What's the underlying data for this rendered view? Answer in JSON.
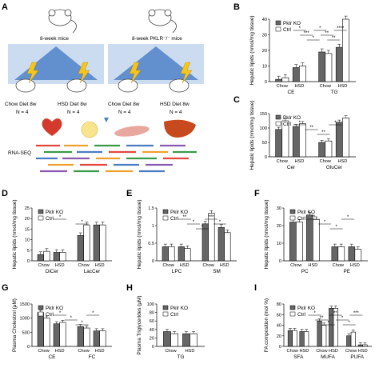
{
  "figure": {
    "panel_a": {
      "label": "A",
      "mouse_left": "8-week mice",
      "mouse_right": "8-week PKLR⁻/⁻ mice",
      "diets": [
        "Chow Diet 8w",
        "HSD Diet 8w",
        "Chow Diet 8w",
        "HSD Diet 8w"
      ],
      "n": [
        "N = 4",
        "N = 4",
        "N = 4",
        "N = 4"
      ],
      "rnaseq": "RNA-SEQ"
    }
  },
  "chart_data": [
    {
      "panel": "B",
      "type": "bar",
      "ylabel": "Hepatic lipids (nmol/mg tissue)",
      "ylim": [
        0,
        40
      ],
      "yticks": [
        0,
        10,
        20,
        30,
        40
      ],
      "groups": [
        "CE",
        "TG"
      ],
      "subgroups": [
        "Chow",
        "HSD",
        "Chow",
        "HSD"
      ],
      "series": [
        {
          "name": "Pklr KO",
          "values": [
            1.5,
            9,
            19,
            22
          ]
        },
        {
          "name": "Ctrl",
          "values": [
            2.5,
            10,
            18,
            40
          ]
        }
      ],
      "sig": [
        "*",
        "***",
        "*",
        "*",
        "**",
        "**",
        "****"
      ]
    },
    {
      "panel": "C",
      "type": "bar",
      "ylabel": "Hepatic lipids (nmol/mg tissue)",
      "ylim": [
        0,
        150
      ],
      "yticks": [
        0,
        50,
        100,
        150
      ],
      "groups": [
        "Cer",
        "GluCer"
      ],
      "subgroups": [
        "Chow",
        "HSD",
        "Chow",
        "HSD"
      ],
      "series": [
        {
          "name": "Pklr KO",
          "values": [
            95,
            105,
            50,
            120
          ]
        },
        {
          "name": "Ctrl",
          "values": [
            125,
            115,
            55,
            135
          ]
        }
      ],
      "sig": [
        "*",
        "**",
        "**",
        "*"
      ]
    },
    {
      "panel": "D",
      "type": "bar",
      "ylabel": "Hepatic lipids (nmol/mg tissue)",
      "ylim": [
        0,
        25
      ],
      "yticks": [
        0,
        5,
        10,
        15,
        20,
        25
      ],
      "groups": [
        "DiCer",
        "LacCer"
      ],
      "subgroups": [
        "Chow",
        "HSD",
        "Chow",
        "HSD"
      ],
      "series": [
        {
          "name": "Pklr KO",
          "values": [
            3,
            4,
            12,
            17
          ]
        },
        {
          "name": "Ctrl",
          "values": [
            4.5,
            4,
            17,
            17
          ]
        }
      ],
      "sig": [
        "*",
        "*"
      ]
    },
    {
      "panel": "E",
      "type": "bar",
      "ylabel": "Hepatic lipids (nmol/mg tissue)",
      "ylim": [
        0,
        1.5
      ],
      "yticks": [
        0.0,
        0.5,
        1.0,
        1.5
      ],
      "groups": [
        "LPC",
        "SM"
      ],
      "subgroups": [
        "Chow",
        "HSD",
        "Chow",
        "HSD"
      ],
      "series": [
        {
          "name": "Pklr KO",
          "values": [
            0.4,
            0.4,
            1.05,
            0.95
          ]
        },
        {
          "name": "Ctrl",
          "values": [
            0.4,
            0.35,
            1.35,
            0.8
          ]
        }
      ],
      "sig": [
        "**",
        "*",
        "*",
        "***",
        "*"
      ]
    },
    {
      "panel": "F",
      "type": "bar",
      "ylabel": "Hepatic lipids (nmol/mg tissue)",
      "ylim": [
        0,
        30
      ],
      "yticks": [
        0,
        10,
        20,
        30
      ],
      "groups": [
        "PC",
        "PE"
      ],
      "subgroups": [
        "Chow",
        "HSD",
        "Chow",
        "HSD"
      ],
      "series": [
        {
          "name": "Pklr KO",
          "values": [
            22,
            26,
            8,
            8
          ]
        },
        {
          "name": "Ctrl",
          "values": [
            22,
            23.5,
            8,
            6.5
          ]
        }
      ],
      "sig": [
        "**",
        "*",
        "*",
        "*"
      ]
    },
    {
      "panel": "G",
      "type": "bar",
      "ylabel": "Plasma Cholestrol (μM)",
      "ylim": [
        0,
        1500
      ],
      "yticks": [
        0,
        500,
        1000,
        1500
      ],
      "groups": [
        "CE",
        "FC"
      ],
      "subgroups": [
        "Chow",
        "HSD",
        "Chow",
        "HSD"
      ],
      "series": [
        {
          "name": "Pklr KO",
          "values": [
            1200,
            800,
            700,
            550
          ]
        },
        {
          "name": "Ctrl",
          "values": [
            1000,
            850,
            650,
            550
          ]
        }
      ],
      "sig": [
        "*",
        "*",
        "*",
        "*"
      ]
    },
    {
      "panel": "H",
      "type": "bar",
      "ylabel": "Plasma Triglycerides (μM)",
      "ylim": [
        0,
        100
      ],
      "yticks": [
        0,
        20,
        40,
        60,
        80,
        100
      ],
      "groups": [
        "TG"
      ],
      "subgroups": [
        "Chow",
        "HSD"
      ],
      "series": [
        {
          "name": "Pklr KO",
          "values": [
            35,
            30
          ]
        },
        {
          "name": "Ctrl",
          "values": [
            30,
            30
          ]
        }
      ],
      "sig": []
    },
    {
      "panel": "I",
      "type": "bar",
      "ylabel": "FA composition (mol %)",
      "ylim": [
        0,
        80
      ],
      "yticks": [
        0,
        20,
        40,
        60,
        80
      ],
      "groups": [
        "SFA",
        "MUFA",
        "PUFA"
      ],
      "subgroups": [
        "Chow",
        "HSD",
        "Chow",
        "HSD",
        "Chow",
        "HSD"
      ],
      "series": [
        {
          "name": "Pklr KO",
          "values": [
            30,
            28,
            48,
            72,
            20,
            3
          ]
        },
        {
          "name": "Ctrl",
          "values": [
            30,
            28,
            40,
            72,
            27,
            3
          ]
        }
      ],
      "sig": [
        "*",
        "**",
        "*",
        "**",
        "*",
        "*",
        "***"
      ]
    }
  ]
}
